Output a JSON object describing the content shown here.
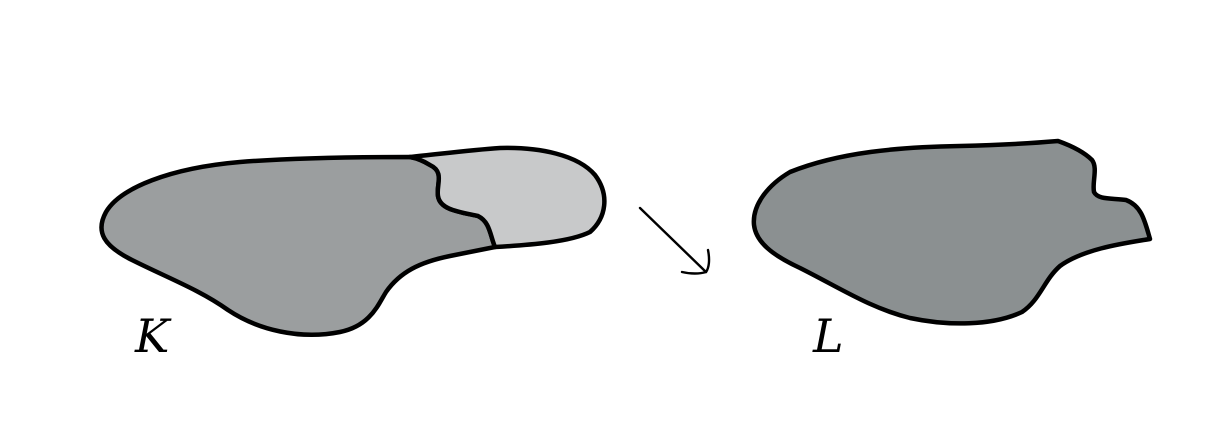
{
  "labels": {
    "left_shape": "K",
    "right_shape": "L"
  },
  "colors": {
    "background": "#ffffff",
    "outline": "#000000",
    "shape_k_main_fill": "#9b9e9f",
    "shape_k_region_fill": "#c8c9ca",
    "shape_l_fill": "#8b9091"
  },
  "icons": {
    "arrow": "diagonal-arrow-icon"
  }
}
